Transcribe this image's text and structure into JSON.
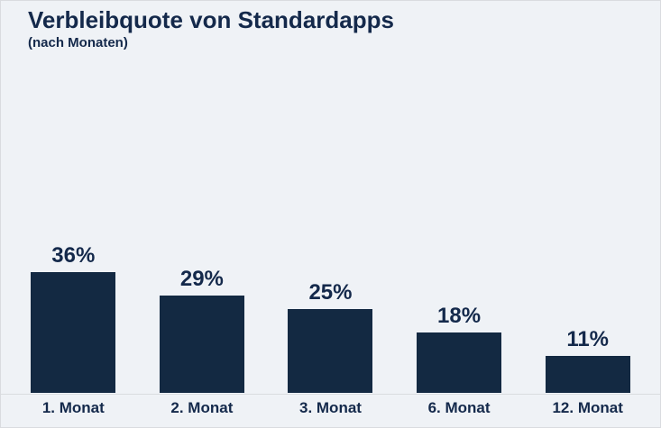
{
  "page": {
    "title": "Verbleibquote von Standardapps",
    "subtitle": "(nach Monaten)"
  },
  "colors": {
    "background": "#eff2f6",
    "border": "#d9dbdf",
    "bar": "#132942",
    "text": "#14294b",
    "baseline": "#d9dcdf"
  },
  "chart_data": {
    "type": "bar",
    "title": "Verbleibquote von Standardapps",
    "subtitle": "(nach Monaten)",
    "categories": [
      "1. Monat",
      "2. Monat",
      "3. Monat",
      "6. Monat",
      "12. Monat"
    ],
    "values": [
      36,
      29,
      25,
      18,
      11
    ],
    "value_labels": [
      "36%",
      "29%",
      "25%",
      "18%",
      "11%"
    ],
    "unit": "%",
    "xlabel": "",
    "ylabel": "",
    "ylim": [
      0,
      40
    ],
    "grid": false,
    "legend": false,
    "bar_color": "#132942",
    "label_color": "#14294b"
  }
}
